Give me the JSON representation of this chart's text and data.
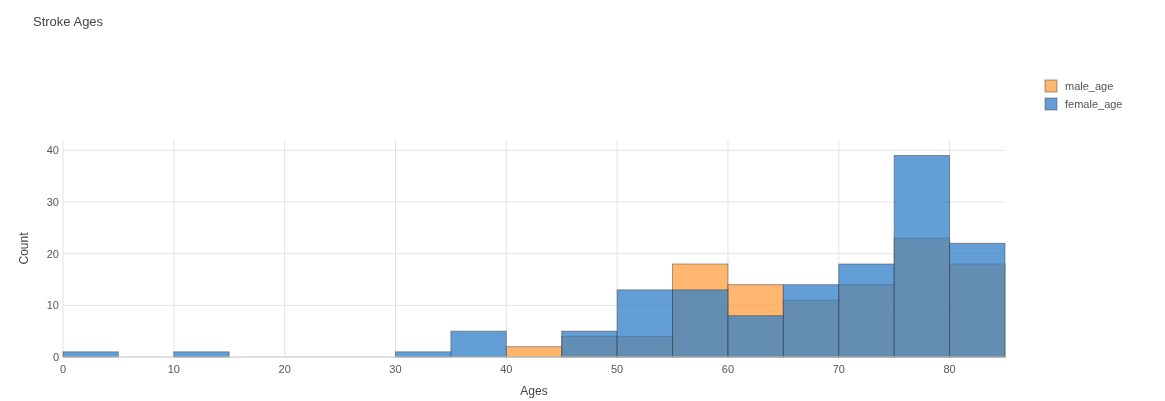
{
  "chart_data": {
    "type": "histogram",
    "title": "Stroke Ages",
    "xlabel": "Ages",
    "ylabel": "Count",
    "bins": [
      0,
      5,
      10,
      15,
      20,
      25,
      30,
      35,
      40,
      45,
      50,
      55,
      60,
      65,
      70,
      75,
      80,
      85
    ],
    "series": [
      {
        "name": "male_age",
        "color": "#ff9f40",
        "values": [
          0,
          0,
          0,
          0,
          0,
          0,
          0,
          0,
          2,
          4,
          4,
          18,
          14,
          11,
          14,
          23,
          18
        ]
      },
      {
        "name": "female_age",
        "color": "#2f7fc8",
        "values": [
          1,
          0,
          1,
          0,
          0,
          0,
          1,
          5,
          0,
          5,
          13,
          13,
          8,
          14,
          18,
          39,
          22
        ]
      }
    ],
    "xlim": [
      0,
      85
    ],
    "xticks": [
      0,
      10,
      20,
      30,
      40,
      50,
      60,
      70,
      80
    ],
    "ylim": [
      0,
      42
    ],
    "yticks": [
      0,
      10,
      20,
      30,
      40
    ],
    "grid": true,
    "legend": "top right"
  }
}
